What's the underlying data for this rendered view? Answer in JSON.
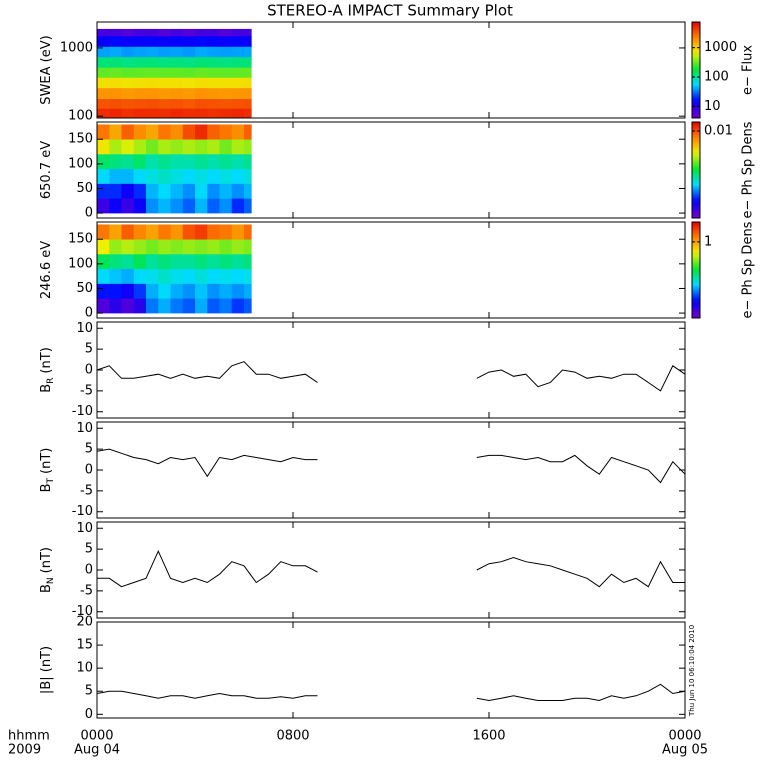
{
  "title": "STEREO-A IMPACT Summary Plot",
  "timestamp": "Thu Jun 10 06:10:04 2010",
  "x_axis": {
    "xlim": [
      0,
      24
    ],
    "xticks": [
      {
        "value": 0,
        "label": "0000"
      },
      {
        "value": 8,
        "label": "0800"
      },
      {
        "value": 16,
        "label": "1600"
      },
      {
        "value": 24,
        "label": "0000"
      }
    ],
    "date_labels": [
      "Aug 04",
      null,
      null,
      "Aug 05"
    ],
    "unit_label": "hhmm",
    "year_label": "2009"
  },
  "chart_data": [
    {
      "type": "heatmap",
      "ylabel": "SWEA (eV)",
      "log_y": true,
      "ylim": [
        94,
        2400
      ],
      "yticks": [
        100,
        1000
      ],
      "x_edges": [
        0,
        0.5,
        1,
        1.5,
        2,
        2.5,
        3,
        3.5,
        4,
        4.5,
        5,
        5.5,
        6,
        6.3
      ],
      "y_edges": [
        94,
        130,
        180,
        260,
        370,
        520,
        740,
        1050,
        1500,
        1900
      ],
      "z": [
        [
          5000,
          5200,
          4800,
          5100,
          5000,
          4900,
          5200,
          5000,
          5100,
          4800,
          5000,
          5200,
          4900
        ],
        [
          3500,
          3600,
          3400,
          3500,
          3600,
          3400,
          3500,
          3300,
          3600,
          3500,
          3400,
          3500,
          3600
        ],
        [
          1800,
          1900,
          1700,
          1800,
          1850,
          1750,
          1800,
          1700,
          1900,
          1800,
          1750,
          1800,
          1850
        ],
        [
          800,
          820,
          780,
          800,
          810,
          790,
          800,
          770,
          820,
          800,
          790,
          800,
          810
        ],
        [
          300,
          310,
          290,
          300,
          305,
          295,
          300,
          290,
          310,
          300,
          295,
          300,
          305
        ],
        [
          120,
          125,
          115,
          120,
          122,
          118,
          120,
          115,
          125,
          120,
          118,
          120,
          122
        ],
        [
          40,
          42,
          38,
          40,
          41,
          39,
          40,
          38,
          42,
          40,
          39,
          40,
          41
        ],
        [
          15,
          16,
          14,
          15,
          15,
          14,
          15,
          14,
          16,
          15,
          14,
          15,
          15
        ],
        [
          7,
          7,
          6,
          7,
          7,
          6,
          7,
          6,
          7,
          7,
          6,
          7,
          7
        ]
      ],
      "zlim": [
        4,
        7500
      ],
      "zlog": true,
      "zticks": [
        10,
        100,
        1000
      ],
      "zlabel": "e− Flux"
    },
    {
      "type": "heatmap",
      "ylabel": "650.7 eV",
      "ylim": [
        -10,
        185
      ],
      "yticks": [
        0,
        50,
        100,
        150
      ],
      "x_edges": [
        0,
        0.5,
        1,
        1.5,
        2,
        2.5,
        3,
        3.5,
        4,
        4.5,
        5,
        5.5,
        6,
        6.3
      ],
      "y_edges": [
        0,
        30,
        60,
        90,
        120,
        150,
        180
      ],
      "z": [
        [
          0.0003,
          0.0004,
          0.0003,
          0.0004,
          0.0007,
          0.0008,
          0.0007,
          0.0006,
          0.0008,
          0.0006,
          0.0007,
          0.0005,
          0.0006
        ],
        [
          0.0005,
          0.0005,
          0.0004,
          0.0005,
          0.0008,
          0.0009,
          0.0008,
          0.0007,
          0.0009,
          0.0007,
          0.0008,
          0.0007,
          0.0008
        ],
        [
          0.0009,
          0.0008,
          0.0008,
          0.0009,
          0.001,
          0.0011,
          0.001,
          0.0009,
          0.001,
          0.0009,
          0.001,
          0.0009,
          0.001
        ],
        [
          0.0015,
          0.0014,
          0.0013,
          0.0015,
          0.0012,
          0.0013,
          0.0012,
          0.0012,
          0.0013,
          0.0012,
          0.0013,
          0.0012,
          0.0013
        ],
        [
          0.004,
          0.003,
          0.0035,
          0.003,
          0.0025,
          0.003,
          0.0028,
          0.003,
          0.0028,
          0.003,
          0.0025,
          0.003,
          0.0028
        ],
        [
          0.008,
          0.006,
          0.009,
          0.007,
          0.006,
          0.008,
          0.007,
          0.01,
          0.012,
          0.009,
          0.008,
          0.007,
          0.009
        ]
      ],
      "zlim": [
        0.0002,
        0.015
      ],
      "zlog": true,
      "zticks": [
        0.01
      ],
      "zlabel": "e− Ph Sp Dens"
    },
    {
      "type": "heatmap",
      "ylabel": "246.6 eV",
      "ylim": [
        -10,
        185
      ],
      "yticks": [
        0,
        50,
        100,
        150
      ],
      "x_edges": [
        0,
        0.5,
        1,
        1.5,
        2,
        2.5,
        3,
        3.5,
        4,
        4.5,
        5,
        5.5,
        6,
        6.3
      ],
      "y_edges": [
        0,
        30,
        60,
        90,
        120,
        150,
        180
      ],
      "z": [
        [
          0.04,
          0.05,
          0.04,
          0.05,
          0.1,
          0.12,
          0.1,
          0.09,
          0.12,
          0.09,
          0.1,
          0.08,
          0.09
        ],
        [
          0.07,
          0.07,
          0.06,
          0.08,
          0.12,
          0.14,
          0.12,
          0.11,
          0.13,
          0.11,
          0.12,
          0.11,
          0.12
        ],
        [
          0.14,
          0.13,
          0.12,
          0.14,
          0.15,
          0.17,
          0.15,
          0.14,
          0.16,
          0.14,
          0.15,
          0.14,
          0.15
        ],
        [
          0.25,
          0.22,
          0.2,
          0.25,
          0.2,
          0.22,
          0.2,
          0.2,
          0.22,
          0.2,
          0.22,
          0.2,
          0.22
        ],
        [
          0.6,
          0.45,
          0.5,
          0.45,
          0.4,
          0.45,
          0.42,
          0.45,
          0.42,
          0.45,
          0.4,
          0.45,
          0.42
        ],
        [
          1.3,
          1.0,
          1.5,
          1.2,
          1.0,
          1.3,
          1.1,
          1.6,
          1.8,
          1.4,
          1.3,
          1.1,
          1.4
        ]
      ],
      "zlim": [
        0.03,
        2.5
      ],
      "zlog": true,
      "zticks": [
        1
      ],
      "zlabel": "e− Ph Sp Dens"
    },
    {
      "type": "line",
      "ylabel": "B",
      "ylabel_sub": "R",
      "ylabel_unit": "(nT)",
      "ylim": [
        -11.5,
        11.5
      ],
      "yticks": [
        -10,
        -5,
        0,
        5,
        10
      ],
      "color": "#000000",
      "x": [
        0,
        0.5,
        1,
        1.5,
        2,
        2.5,
        3,
        3.5,
        4,
        4.5,
        5,
        5.5,
        6,
        6.5,
        7,
        7.5,
        8,
        8.5,
        9,
        9.5,
        10,
        10.5,
        11,
        11.5,
        12,
        12.5,
        13,
        13.5,
        14,
        14.5,
        15,
        15.5,
        16,
        16.5,
        17,
        17.5,
        18,
        18.5,
        19,
        19.5,
        20,
        20.5,
        21,
        21.5,
        22,
        22.5,
        23,
        23.5,
        24
      ],
      "values": [
        0,
        1,
        -2,
        -2,
        -1.5,
        -1,
        -2,
        -1,
        -2,
        -1.5,
        -2,
        1,
        2,
        -1,
        -1,
        -2,
        -1.5,
        -1,
        -3,
        null,
        null,
        null,
        null,
        null,
        null,
        null,
        null,
        null,
        null,
        null,
        null,
        -2,
        -0.5,
        0,
        -1.5,
        -1,
        -4,
        -3,
        0,
        -0.5,
        -2,
        -1.5,
        -2,
        -1,
        -1,
        -3,
        -5,
        1,
        -1
      ]
    },
    {
      "type": "line",
      "ylabel": "B",
      "ylabel_sub": "T",
      "ylabel_unit": "(nT)",
      "ylim": [
        -11.5,
        11.5
      ],
      "yticks": [
        -10,
        -5,
        0,
        5,
        10
      ],
      "color": "#000000",
      "x": [
        0,
        0.5,
        1,
        1.5,
        2,
        2.5,
        3,
        3.5,
        4,
        4.5,
        5,
        5.5,
        6,
        6.5,
        7,
        7.5,
        8,
        8.5,
        9,
        9.5,
        10,
        10.5,
        11,
        11.5,
        12,
        12.5,
        13,
        13.5,
        14,
        14.5,
        15,
        15.5,
        16,
        16.5,
        17,
        17.5,
        18,
        18.5,
        19,
        19.5,
        20,
        20.5,
        21,
        21.5,
        22,
        22.5,
        23,
        23.5,
        24
      ],
      "values": [
        4.5,
        5,
        4,
        3,
        2.5,
        1.5,
        3,
        2.5,
        3,
        -1.5,
        3,
        2.5,
        3.5,
        3,
        2.5,
        2,
        3,
        2.5,
        2.5,
        null,
        null,
        null,
        null,
        null,
        null,
        null,
        null,
        null,
        null,
        null,
        null,
        3,
        3.5,
        3.5,
        3,
        2.5,
        3,
        2,
        2,
        3.5,
        1,
        -1,
        3,
        2,
        1,
        0,
        -3,
        2,
        -1
      ]
    },
    {
      "type": "line",
      "ylabel": "B",
      "ylabel_sub": "N",
      "ylabel_unit": "(nT)",
      "ylim": [
        -11.5,
        11.5
      ],
      "yticks": [
        -10,
        -5,
        0,
        5,
        10
      ],
      "color": "#000000",
      "x": [
        0,
        0.5,
        1,
        1.5,
        2,
        2.5,
        3,
        3.5,
        4,
        4.5,
        5,
        5.5,
        6,
        6.5,
        7,
        7.5,
        8,
        8.5,
        9,
        9.5,
        10,
        10.5,
        11,
        11.5,
        12,
        12.5,
        13,
        13.5,
        14,
        14.5,
        15,
        15.5,
        16,
        16.5,
        17,
        17.5,
        18,
        18.5,
        19,
        19.5,
        20,
        20.5,
        21,
        21.5,
        22,
        22.5,
        23,
        23.5,
        24
      ],
      "values": [
        -2,
        -2,
        -4,
        -3,
        -2,
        4.5,
        -2,
        -3,
        -2,
        -3,
        -1,
        2,
        1,
        -3,
        -1,
        2,
        1,
        1,
        -0.5,
        null,
        null,
        null,
        null,
        null,
        null,
        null,
        null,
        null,
        null,
        null,
        null,
        0,
        1.5,
        2,
        3,
        2,
        1.5,
        1,
        0,
        -1,
        -2,
        -4,
        -1,
        -3,
        -2,
        -4,
        2,
        -3,
        -3
      ]
    },
    {
      "type": "line",
      "ylabel": "|B| (nT)",
      "ylim": [
        -0.8,
        20
      ],
      "yticks": [
        0,
        5,
        10,
        15,
        20
      ],
      "color": "#000000",
      "x": [
        0,
        0.5,
        1,
        1.5,
        2,
        2.5,
        3,
        3.5,
        4,
        4.5,
        5,
        5.5,
        6,
        6.5,
        7,
        7.5,
        8,
        8.5,
        9,
        9.5,
        10,
        10.5,
        11,
        11.5,
        12,
        12.5,
        13,
        13.5,
        14,
        14.5,
        15,
        15.5,
        16,
        16.5,
        17,
        17.5,
        18,
        18.5,
        19,
        19.5,
        20,
        20.5,
        21,
        21.5,
        22,
        22.5,
        23,
        23.5,
        24
      ],
      "values": [
        4.5,
        5,
        5,
        4.5,
        4,
        3.5,
        4,
        4,
        3.5,
        4,
        4.5,
        4,
        4,
        3.5,
        3.5,
        3.8,
        3.5,
        4,
        4,
        null,
        null,
        null,
        null,
        null,
        null,
        null,
        null,
        null,
        null,
        null,
        null,
        3.5,
        3,
        3.5,
        4,
        3.5,
        3,
        3,
        3,
        3.5,
        3.5,
        3,
        4,
        3.5,
        4,
        5,
        6.5,
        4.5,
        5
      ]
    }
  ]
}
